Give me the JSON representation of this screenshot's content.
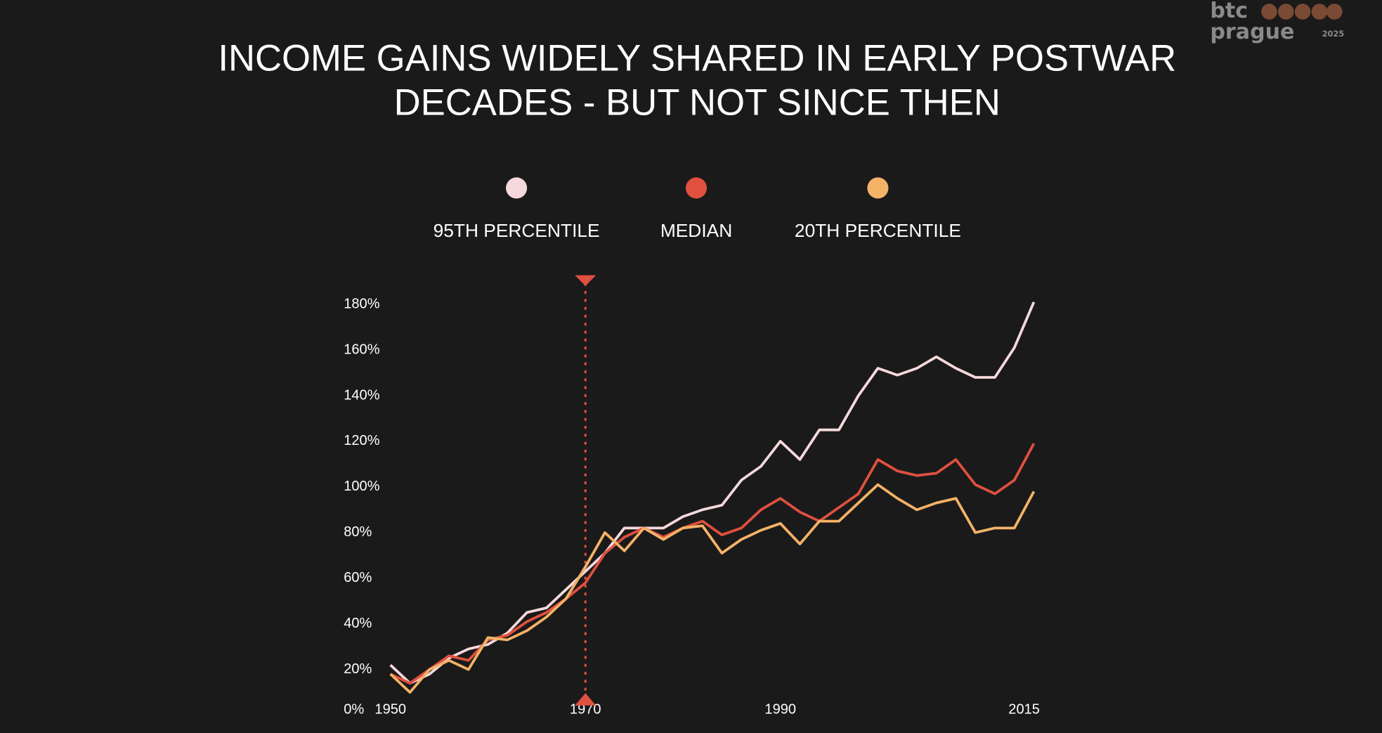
{
  "watermark": {
    "line1": "btc",
    "line2": "prague",
    "year": "2025"
  },
  "chart_data": {
    "type": "line",
    "title": [
      "INCOME GAINS WIDELY SHARED IN EARLY POSTWAR",
      "DECADES - BUT NOT SINCE THEN"
    ],
    "x": [
      1950,
      1952,
      1954,
      1956,
      1958,
      1960,
      1962,
      1964,
      1966,
      1968,
      1970,
      1972,
      1974,
      1976,
      1978,
      1980,
      1982,
      1984,
      1986,
      1988,
      1990,
      1992,
      1994,
      1996,
      1998,
      2000,
      2002,
      2004,
      2006,
      2008,
      2010,
      2012,
      2014,
      2016
    ],
    "series": [
      {
        "name": "95TH PERCENTILE",
        "color": "#f6d9dc",
        "values": [
          22,
          14,
          18,
          25,
          29,
          31,
          36,
          45,
          47,
          55,
          63,
          71,
          82,
          82,
          82,
          87,
          90,
          92,
          103,
          109,
          120,
          112,
          125,
          125,
          140,
          152,
          149,
          152,
          157,
          152,
          148,
          148,
          161,
          181
        ]
      },
      {
        "name": "MEDIAN",
        "color": "#e0503f",
        "values": [
          18,
          14,
          20,
          26,
          24,
          33,
          35,
          41,
          45,
          51,
          58,
          71,
          78,
          82,
          78,
          82,
          85,
          79,
          82,
          90,
          95,
          89,
          85,
          91,
          97,
          112,
          107,
          105,
          106,
          112,
          101,
          97,
          103,
          119
        ]
      },
      {
        "name": "20TH PERCENTILE",
        "color": "#f4b266",
        "values": [
          18,
          10,
          20,
          24,
          20,
          34,
          33,
          37,
          43,
          51,
          65,
          80,
          72,
          82,
          77,
          82,
          83,
          71,
          77,
          81,
          84,
          75,
          85,
          85,
          93,
          101,
          95,
          90,
          93,
          95,
          80,
          82,
          82,
          98
        ]
      }
    ],
    "xlim": [
      1950,
      2016
    ],
    "xticks": [
      1950,
      1970,
      1990,
      2015
    ],
    "ylim": [
      0,
      180
    ],
    "yticks": [
      {
        "value": 0,
        "label": "0%"
      },
      {
        "value": 20,
        "label": "20%"
      },
      {
        "value": 40,
        "label": "40%"
      },
      {
        "value": 60,
        "label": "60%"
      },
      {
        "value": 80,
        "label": "80%"
      },
      {
        "value": 100,
        "label": "100%"
      },
      {
        "value": 120,
        "label": "120%"
      },
      {
        "value": 140,
        "label": "140%"
      },
      {
        "value": 160,
        "label": "160%"
      },
      {
        "value": 180,
        "label": "180%"
      }
    ],
    "grid": false,
    "legend": "top"
  }
}
